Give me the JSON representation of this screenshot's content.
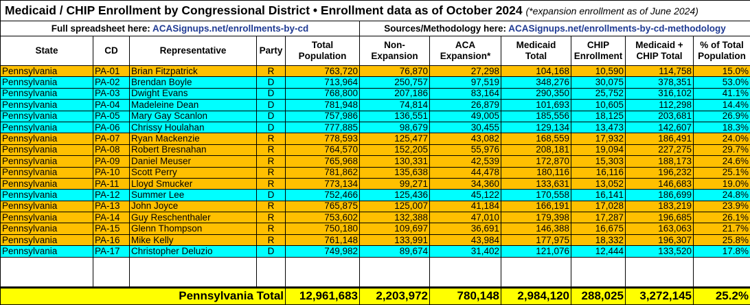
{
  "title": {
    "main": "Medicaid / CHIP Enrollment by Congressional District • Enrollment data as of October 2024",
    "note": "(*expansion enrollment as of June 2024)"
  },
  "links": {
    "spreadsheet_label": "Full spreadsheet here:",
    "spreadsheet_link": "ACASignups.net/enrollments-by-cd",
    "methodology_label": "Sources/Methodology here:",
    "methodology_link": "ACASignups.net/enrollments-by-cd-methodology"
  },
  "colors": {
    "R": "#FFC000",
    "D": "#00FFFF",
    "total": "#FFFF00"
  },
  "columns": [
    "State",
    "CD",
    "Representative",
    "Party",
    "Total\nPopulation",
    "Non-\nExpansion",
    "ACA\nExpansion*",
    "Medicaid\nTotal",
    "CHIP\nEnrollment",
    "Medicaid +\nCHIP Total",
    "% of Total\nPopulation"
  ],
  "rows": [
    [
      "Pennsylvania",
      "PA-01",
      "Brian Fitzpatrick",
      "R",
      "763,720",
      "76,870",
      "27,298",
      "104,168",
      "10,590",
      "114,758",
      "15.0%"
    ],
    [
      "Pennsylvania",
      "PA-02",
      "Brendan Boyle",
      "D",
      "713,964",
      "250,757",
      "97,519",
      "348,276",
      "30,075",
      "378,351",
      "53.0%"
    ],
    [
      "Pennsylvania",
      "PA-03",
      "Dwight Evans",
      "D",
      "768,800",
      "207,186",
      "83,164",
      "290,350",
      "25,752",
      "316,102",
      "41.1%"
    ],
    [
      "Pennsylvania",
      "PA-04",
      "Madeleine Dean",
      "D",
      "781,948",
      "74,814",
      "26,879",
      "101,693",
      "10,605",
      "112,298",
      "14.4%"
    ],
    [
      "Pennsylvania",
      "PA-05",
      "Mary Gay Scanlon",
      "D",
      "757,986",
      "136,551",
      "49,005",
      "185,556",
      "18,125",
      "203,681",
      "26.9%"
    ],
    [
      "Pennsylvania",
      "PA-06",
      "Chrissy Houlahan",
      "D",
      "777,885",
      "98,679",
      "30,455",
      "129,134",
      "13,473",
      "142,607",
      "18.3%"
    ],
    [
      "Pennsylvania",
      "PA-07",
      "Ryan Mackenzie",
      "R",
      "778,593",
      "125,477",
      "43,082",
      "168,559",
      "17,932",
      "186,491",
      "24.0%"
    ],
    [
      "Pennsylvania",
      "PA-08",
      "Robert Bresnahan",
      "R",
      "764,570",
      "152,205",
      "55,976",
      "208,181",
      "19,094",
      "227,275",
      "29.7%"
    ],
    [
      "Pennsylvania",
      "PA-09",
      "Daniel Meuser",
      "R",
      "765,968",
      "130,331",
      "42,539",
      "172,870",
      "15,303",
      "188,173",
      "24.6%"
    ],
    [
      "Pennsylvania",
      "PA-10",
      "Scott Perry",
      "R",
      "781,862",
      "135,638",
      "44,478",
      "180,116",
      "16,116",
      "196,232",
      "25.1%"
    ],
    [
      "Pennsylvania",
      "PA-11",
      "Lloyd Smucker",
      "R",
      "773,134",
      "99,271",
      "34,360",
      "133,631",
      "13,052",
      "146,683",
      "19.0%"
    ],
    [
      "Pennsylvania",
      "PA-12",
      "Summer Lee",
      "D",
      "752,466",
      "125,436",
      "45,122",
      "170,558",
      "16,141",
      "186,699",
      "24.8%"
    ],
    [
      "Pennsylvania",
      "PA-13",
      "John Joyce",
      "R",
      "765,875",
      "125,007",
      "41,184",
      "166,191",
      "17,028",
      "183,219",
      "23.9%"
    ],
    [
      "Pennsylvania",
      "PA-14",
      "Guy Reschenthaler",
      "R",
      "753,602",
      "132,388",
      "47,010",
      "179,398",
      "17,287",
      "196,685",
      "26.1%"
    ],
    [
      "Pennsylvania",
      "PA-15",
      "Glenn Thompson",
      "R",
      "750,180",
      "109,697",
      "36,691",
      "146,388",
      "16,675",
      "163,063",
      "21.7%"
    ],
    [
      "Pennsylvania",
      "PA-16",
      "Mike Kelly",
      "R",
      "761,148",
      "133,991",
      "43,984",
      "177,975",
      "18,332",
      "196,307",
      "25.8%"
    ],
    [
      "Pennsylvania",
      "PA-17",
      "Christopher Deluzio",
      "D",
      "749,982",
      "89,674",
      "31,402",
      "121,076",
      "12,444",
      "133,520",
      "17.8%"
    ]
  ],
  "total": {
    "label": "Pennsylvania Total",
    "values": [
      "12,961,683",
      "2,203,972",
      "780,148",
      "2,984,120",
      "288,025",
      "3,272,145",
      "25.2%"
    ]
  }
}
